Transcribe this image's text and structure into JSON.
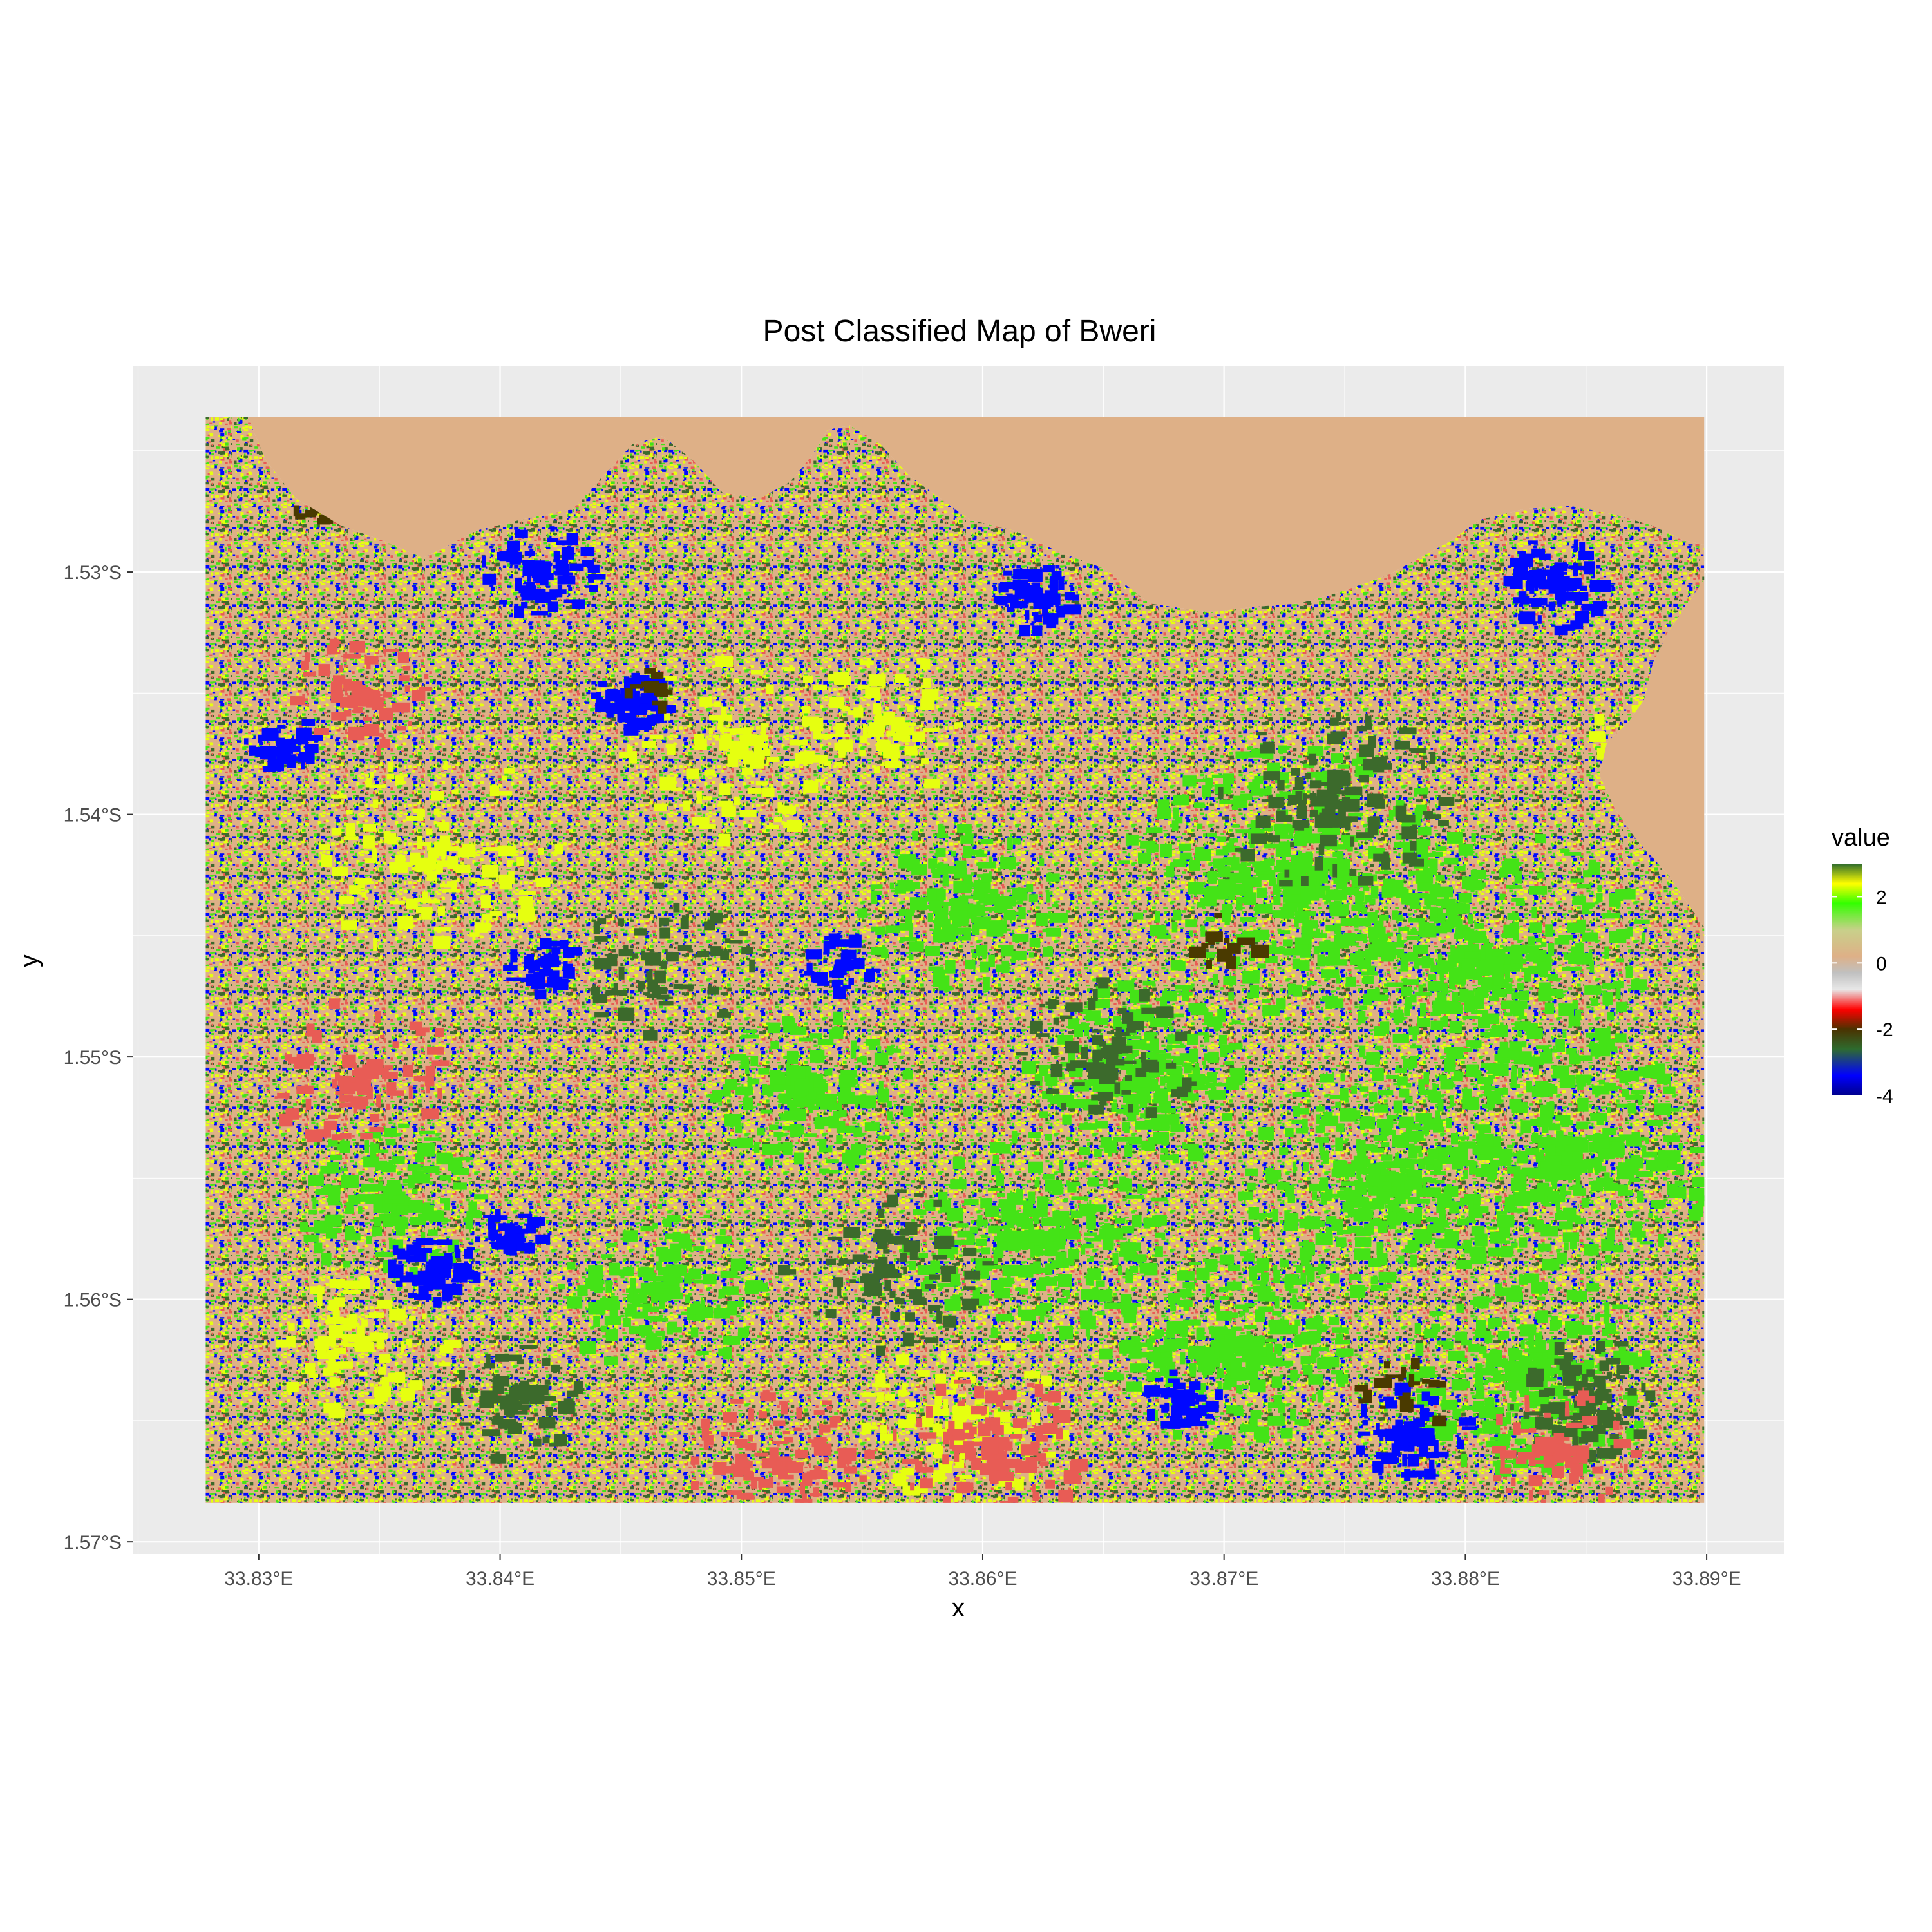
{
  "chart_data": {
    "type": "heatmap",
    "title": "Post Classified Map of Bweri",
    "xlabel": "x",
    "ylabel": "y",
    "x_ticks": [
      {
        "value": 33.83,
        "label": "33.83°E"
      },
      {
        "value": 33.84,
        "label": "33.84°E"
      },
      {
        "value": 33.85,
        "label": "33.85°E"
      },
      {
        "value": 33.86,
        "label": "33.86°E"
      },
      {
        "value": 33.87,
        "label": "33.87°E"
      },
      {
        "value": 33.88,
        "label": "33.88°E"
      },
      {
        "value": 33.89,
        "label": "33.89°E"
      }
    ],
    "y_ticks": [
      {
        "value": -1.53,
        "label": "1.53°S"
      },
      {
        "value": -1.54,
        "label": "1.54°S"
      },
      {
        "value": -1.55,
        "label": "1.55°S"
      },
      {
        "value": -1.56,
        "label": "1.56°S"
      },
      {
        "value": -1.57,
        "label": "1.57°S"
      }
    ],
    "xlim": [
      33.8248,
      33.8932
    ],
    "ylim": [
      -1.5705,
      -1.5215
    ],
    "raster_extent": {
      "xmin": 33.8278,
      "xmax": 33.8899,
      "ymin": -1.5684,
      "ymax": -1.5236
    },
    "grid": true,
    "legend": {
      "title": "value",
      "position": "right",
      "range": [
        -4,
        3
      ],
      "ticks": [
        {
          "value": 2,
          "label": "2"
        },
        {
          "value": 0,
          "label": "0"
        },
        {
          "value": -2,
          "label": "-2"
        },
        {
          "value": -4,
          "label": "-4"
        }
      ],
      "colors": [
        {
          "value": -4,
          "color": "#00008B"
        },
        {
          "value": -3.4,
          "color": "#0000FF"
        },
        {
          "value": -2.6,
          "color": "#2E6B2E"
        },
        {
          "value": -2.0,
          "color": "#4B3200"
        },
        {
          "value": -1.4,
          "color": "#FF0000"
        },
        {
          "value": -0.8,
          "color": "#E8E8E8"
        },
        {
          "value": -0.3,
          "color": "#C0C0C0"
        },
        {
          "value": 0.2,
          "color": "#DEB087"
        },
        {
          "value": 1.0,
          "color": "#C8D08A"
        },
        {
          "value": 1.8,
          "color": "#33FF00"
        },
        {
          "value": 2.4,
          "color": "#FFFF00"
        },
        {
          "value": 3.0,
          "color": "#2E6B2E"
        }
      ]
    },
    "class_colors": {
      "background": "#DEB087",
      "bright_green": "#44E317",
      "dark_green": "#3C6A2C",
      "yellow": "#E6FF10",
      "red": "#E85C55",
      "blue": "#0008FF",
      "brown": "#4A3A00"
    }
  }
}
